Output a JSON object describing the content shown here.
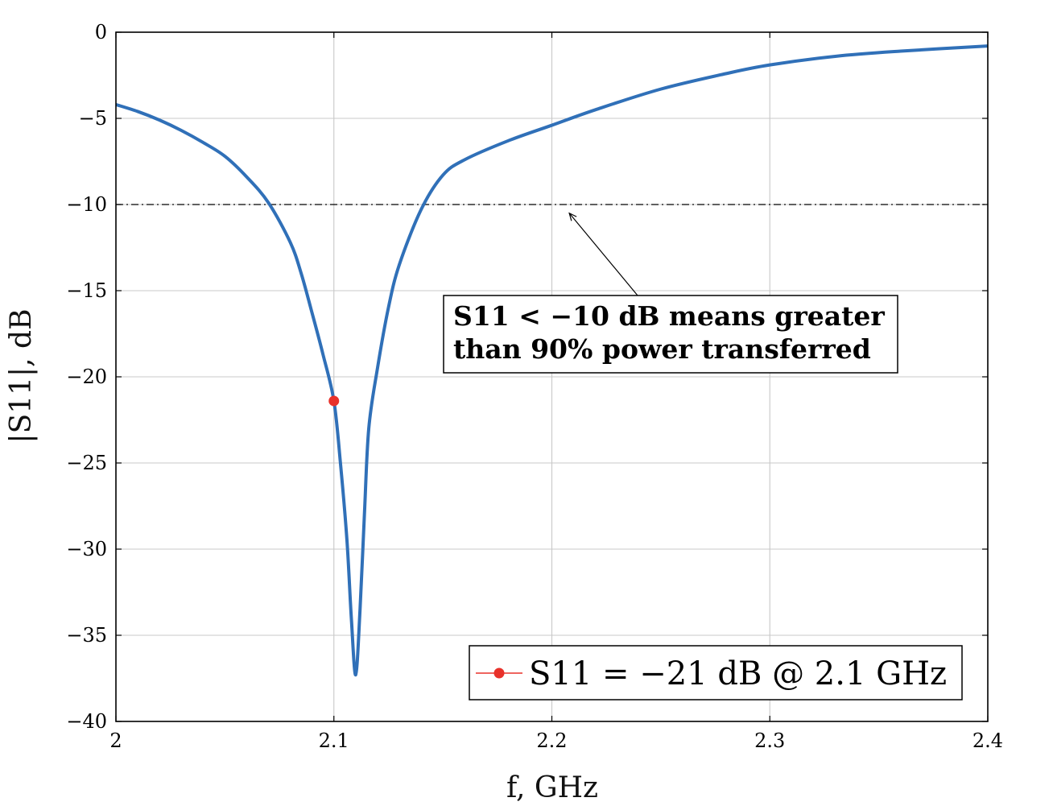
{
  "chart_data": {
    "type": "line",
    "title": "",
    "xlabel": "f, GHz",
    "ylabel": "|S11|, dB",
    "xlim": [
      2.0,
      2.4
    ],
    "ylim": [
      -40,
      0
    ],
    "xticks": [
      2.0,
      2.1,
      2.2,
      2.3,
      2.4
    ],
    "xtick_labels": [
      "2",
      "2.1",
      "2.2",
      "2.3",
      "2.4"
    ],
    "yticks": [
      0,
      -5,
      -10,
      -15,
      -20,
      -25,
      -30,
      -35,
      -40
    ],
    "ytick_labels": [
      "0",
      "−5",
      "−10",
      "−15",
      "−20",
      "−25",
      "−30",
      "−35",
      "−40"
    ],
    "grid": true,
    "series": [
      {
        "color": "#3070b8",
        "x": [
          2.0,
          2.01,
          2.02,
          2.03,
          2.04,
          2.05,
          2.06,
          2.07,
          2.08,
          2.085,
          2.09,
          2.095,
          2.1,
          2.103,
          2.106,
          2.108,
          2.11,
          2.112,
          2.114,
          2.116,
          2.12,
          2.125,
          2.13,
          2.14,
          2.15,
          2.16,
          2.18,
          2.2,
          2.22,
          2.25,
          2.28,
          2.3,
          2.33,
          2.36,
          2.4
        ],
        "y": [
          -4.2,
          -4.6,
          -5.1,
          -5.7,
          -6.4,
          -7.2,
          -8.4,
          -9.9,
          -12.2,
          -14.0,
          -16.3,
          -18.7,
          -21.4,
          -25.0,
          -29.5,
          -34.0,
          -37.3,
          -33.5,
          -28.0,
          -23.0,
          -19.5,
          -16.0,
          -13.5,
          -10.3,
          -8.3,
          -7.4,
          -6.3,
          -5.4,
          -4.5,
          -3.3,
          -2.4,
          -1.9,
          -1.4,
          -1.1,
          -0.8
        ]
      }
    ],
    "reference_line": {
      "y": -10,
      "style": "dash-dot",
      "color": "#000000"
    },
    "marker": {
      "x": 2.1,
      "y": -21.4,
      "color": "#e8312a"
    },
    "annotation": {
      "lines": [
        "S11 < −10 dB means greater",
        "than 90% power transferred"
      ],
      "arrow_target": {
        "x": 2.208,
        "y": -10.5
      }
    },
    "legend": {
      "position": "bottom-right",
      "entries": [
        {
          "label": "S11 = −21 dB @ 2.1 GHz",
          "color": "#e8312a",
          "marker": "circle"
        }
      ]
    }
  }
}
